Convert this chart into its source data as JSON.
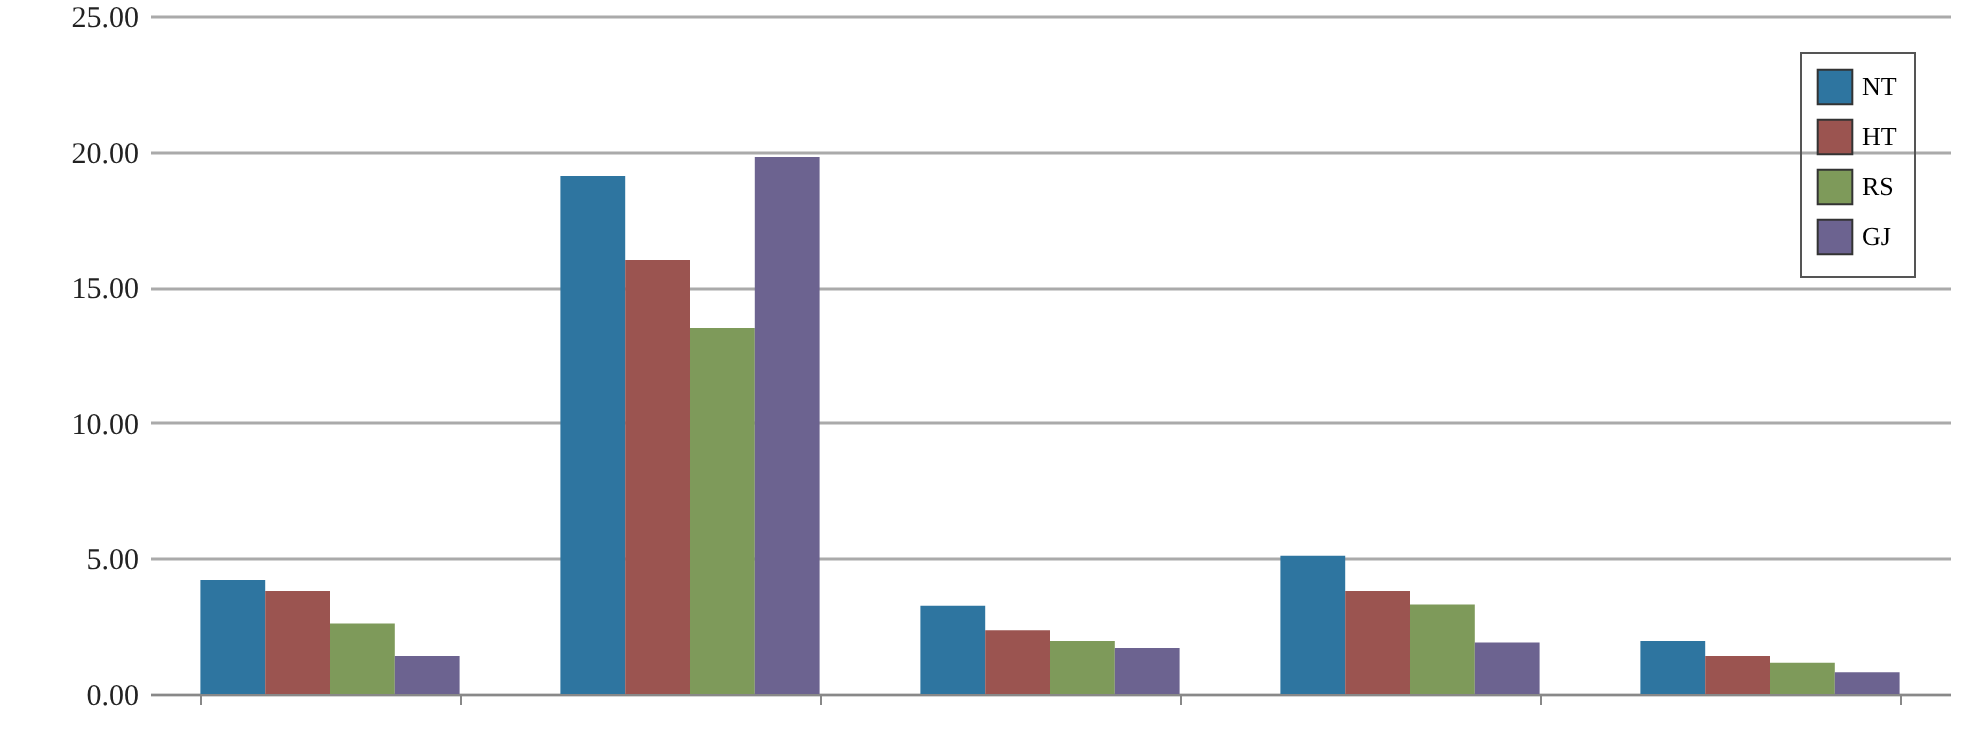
{
  "chart_data": {
    "type": "bar",
    "categories": [
      null,
      null,
      null,
      null,
      null
    ],
    "series": [
      {
        "name": "NT",
        "color": "#2e75a0",
        "values": [
          4.2,
          19.1,
          3.25,
          5.1,
          1.95
        ]
      },
      {
        "name": "HT",
        "color": "#9b5450",
        "values": [
          3.8,
          16.0,
          2.35,
          3.8,
          1.4
        ]
      },
      {
        "name": "RS",
        "color": "#7e9a5a",
        "values": [
          2.6,
          13.5,
          1.95,
          3.3,
          1.15
        ]
      },
      {
        "name": "GJ",
        "color": "#6c6390",
        "values": [
          1.4,
          19.8,
          1.7,
          1.9,
          0.8
        ]
      }
    ],
    "ylim": [
      0,
      25
    ],
    "yticks": [
      {
        "value": 0,
        "label": "0.00"
      },
      {
        "value": 5,
        "label": "5.00"
      },
      {
        "value": 10,
        "label": "10.00"
      },
      {
        "value": 15,
        "label": "15.00"
      },
      {
        "value": 20,
        "label": "20.00"
      },
      {
        "value": 25,
        "label": "25.00"
      }
    ],
    "grid": "y",
    "legend": "top right"
  }
}
